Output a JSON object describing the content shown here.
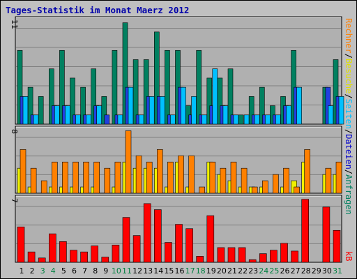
{
  "title": "Tages-Statistik im Monat Maerz 2012",
  "chart_data": [
    {
      "type": "bar",
      "panel": "top",
      "categories": [
        "1",
        "2",
        "3",
        "4",
        "5",
        "6",
        "7",
        "8",
        "9",
        "10",
        "11",
        "12",
        "13",
        "14",
        "15",
        "16",
        "17",
        "18",
        "19",
        "20",
        "21",
        "22",
        "23",
        "24",
        "25",
        "26",
        "27",
        "28",
        "29",
        "30",
        "31"
      ],
      "y_tick_label": "11",
      "grid": true,
      "series": [
        {
          "name": "Anfragen",
          "color": "#008060",
          "values": [
            8,
            4,
            3,
            6,
            8,
            5,
            4,
            6,
            3,
            8,
            11,
            7,
            7,
            10,
            8,
            8,
            2,
            8,
            5,
            5,
            6,
            1,
            3,
            4,
            2,
            3,
            8,
            0,
            0,
            4,
            7
          ]
        },
        {
          "name": "Dateien",
          "color": "#2040e0",
          "values": [
            3,
            1,
            0,
            2,
            2,
            1,
            1,
            2,
            1,
            1,
            4,
            1,
            3,
            3,
            1,
            4,
            1,
            1,
            2,
            2,
            1,
            0,
            1,
            1,
            1,
            2,
            4,
            0,
            0,
            4,
            3
          ]
        },
        {
          "name": "Seiten",
          "color": "#00c0ff",
          "values": [
            3,
            1,
            0,
            2,
            2,
            1,
            1,
            2,
            0,
            1,
            4,
            1,
            3,
            3,
            1,
            4,
            3,
            1,
            6,
            2,
            1,
            1,
            1,
            1,
            1,
            2,
            4,
            0,
            0,
            2,
            3
          ]
        }
      ]
    },
    {
      "type": "bar",
      "panel": "middle",
      "categories": [
        "1",
        "2",
        "3",
        "4",
        "5",
        "6",
        "7",
        "8",
        "9",
        "10",
        "11",
        "12",
        "13",
        "14",
        "15",
        "16",
        "17",
        "18",
        "19",
        "20",
        "21",
        "22",
        "23",
        "24",
        "25",
        "26",
        "27",
        "28",
        "29",
        "30",
        "31"
      ],
      "y_tick_label": "8",
      "grid": true,
      "series": [
        {
          "name": "Besuche",
          "color": "#f0f000",
          "values": [
            4,
            1,
            0,
            1,
            1,
            1,
            1,
            1,
            0,
            1,
            5,
            4,
            4,
            4,
            1,
            5,
            1,
            0,
            5,
            3,
            2,
            1,
            1,
            1,
            0,
            1,
            2,
            5,
            0,
            3,
            3
          ]
        },
        {
          "name": "Rechner",
          "color": "#ff8000",
          "values": [
            7,
            4,
            2,
            5,
            5,
            5,
            5,
            5,
            4,
            5,
            10,
            6,
            5,
            7,
            5,
            6,
            6,
            1,
            5,
            4,
            5,
            4,
            1,
            2,
            3,
            4,
            1,
            7,
            0,
            4,
            5
          ]
        }
      ]
    },
    {
      "type": "bar",
      "panel": "bottom",
      "categories": [
        "1",
        "2",
        "3",
        "4",
        "5",
        "6",
        "7",
        "8",
        "9",
        "10",
        "11",
        "12",
        "13",
        "14",
        "15",
        "16",
        "17",
        "18",
        "19",
        "20",
        "21",
        "22",
        "23",
        "24",
        "25",
        "26",
        "27",
        "28",
        "29",
        "30",
        "31"
      ],
      "y_tick_label": "7",
      "grid": true,
      "series": [
        {
          "name": "kB",
          "color": "#ff0000",
          "values": [
            4.1,
            1.2,
            0.5,
            3.3,
            2.4,
            1.4,
            1.2,
            1.9,
            0.6,
            2.0,
            5.2,
            3.1,
            6.8,
            6.1,
            2.3,
            4.4,
            3.9,
            0.7,
            5.4,
            1.7,
            1.7,
            1.7,
            0.3,
            1.0,
            1.4,
            2.2,
            1.3,
            7.3,
            0,
            6.4,
            3.7
          ]
        }
      ]
    }
  ],
  "right_labels": {
    "top": [
      "Anfragen",
      "Dateien",
      "Seiten",
      "Besuche",
      "Rechner"
    ],
    "top_sep": "/",
    "bottom": "kB",
    "colors": {
      "Anfragen": "#008060",
      "Dateien": "#0000cc",
      "Seiten": "#00c0ff",
      "Besuche": "#e0e000",
      "Rechner": "#ff8000",
      "sep": "#000000",
      "kB": "#ff0000"
    }
  },
  "weekend_color": "#008040",
  "weekday_color": "#000000",
  "weekend_days": [
    3,
    4,
    10,
    11,
    17,
    18,
    24,
    25,
    31
  ]
}
